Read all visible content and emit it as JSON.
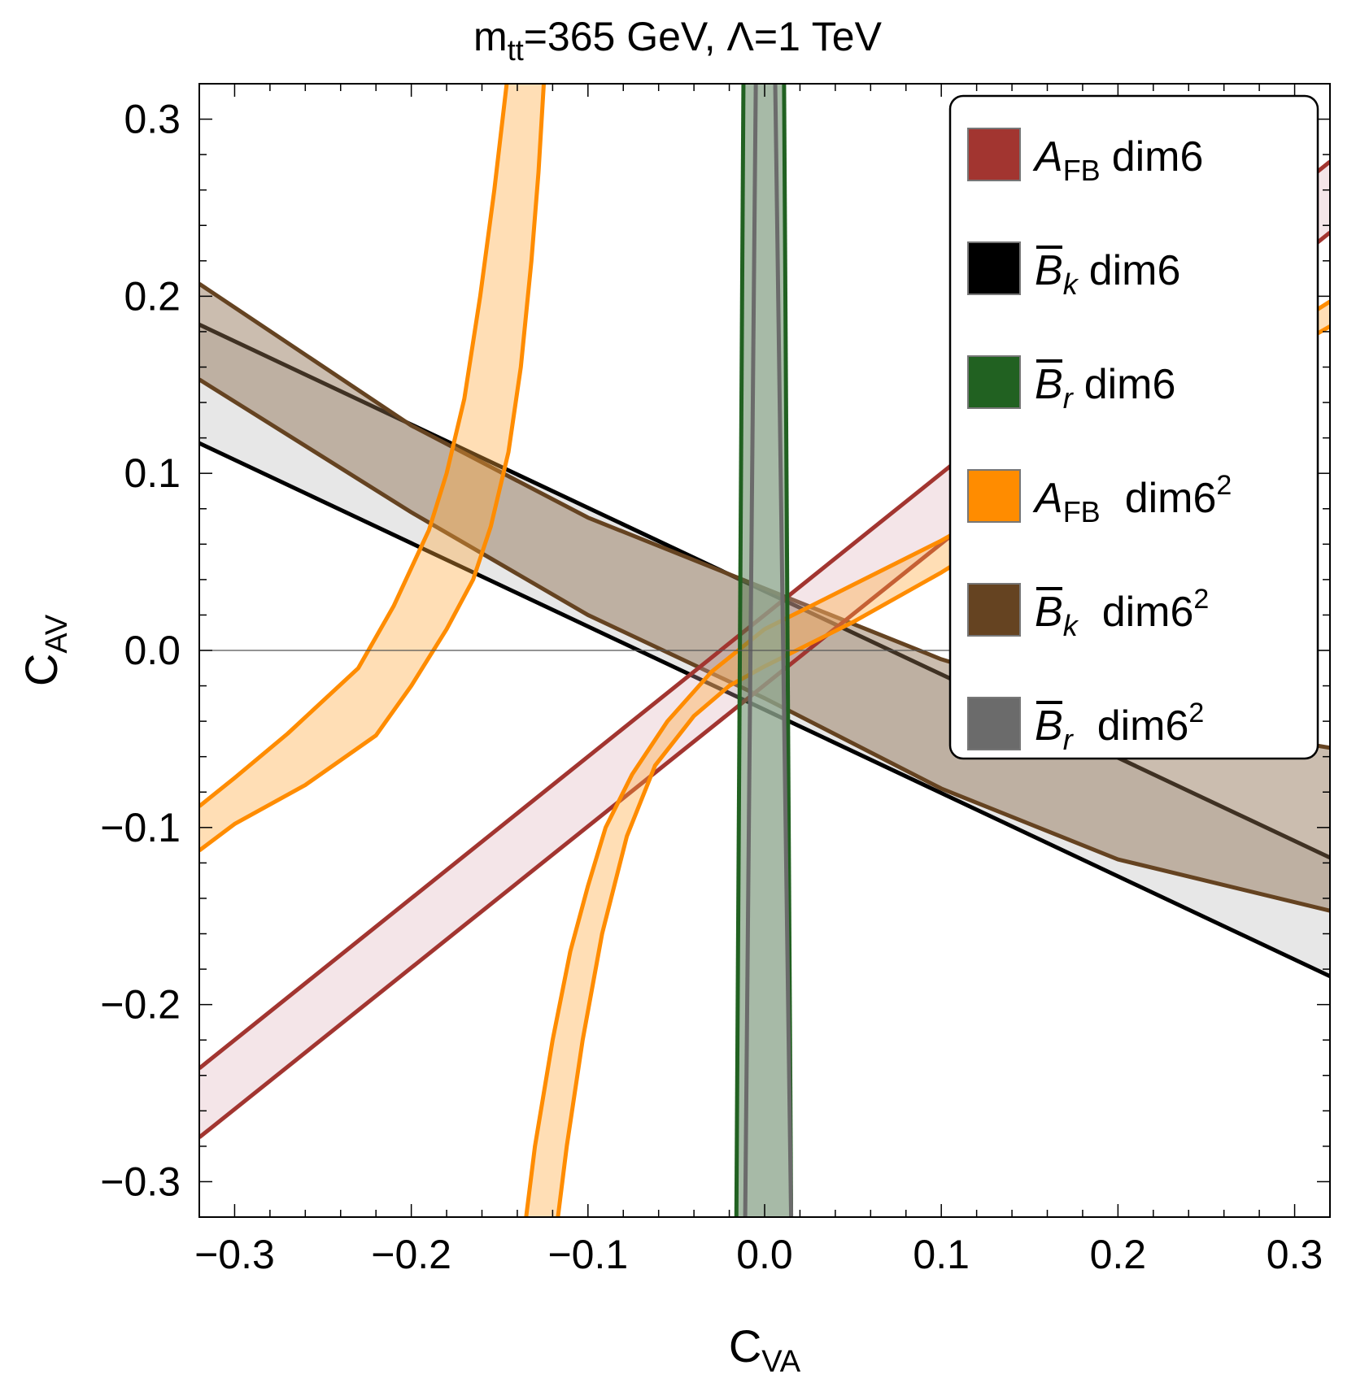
{
  "chart_data": {
    "type": "region",
    "title": {
      "main": "m",
      "sub": "tt",
      "rest": "=365 GeV, Λ=1 TeV"
    },
    "xlabel": {
      "main": "C",
      "sub": "VA"
    },
    "ylabel": {
      "main": "C",
      "sub": "AV"
    },
    "xlim": [
      -0.32,
      0.32
    ],
    "ylim": [
      -0.32,
      0.32
    ],
    "x_ticks": [
      {
        "value": -0.3,
        "label": "−0.3"
      },
      {
        "value": -0.2,
        "label": "−0.2"
      },
      {
        "value": -0.1,
        "label": "−0.1"
      },
      {
        "value": 0.0,
        "label": "0.0"
      },
      {
        "value": 0.1,
        "label": "0.1"
      },
      {
        "value": 0.2,
        "label": "0.2"
      },
      {
        "value": 0.3,
        "label": "0.3"
      }
    ],
    "y_ticks": [
      {
        "value": -0.3,
        "label": "−0.3"
      },
      {
        "value": -0.2,
        "label": "−0.2"
      },
      {
        "value": -0.1,
        "label": "−0.1"
      },
      {
        "value": 0.0,
        "label": "0.0"
      },
      {
        "value": 0.1,
        "label": "0.1"
      },
      {
        "value": 0.2,
        "label": "0.2"
      },
      {
        "value": 0.3,
        "label": "0.3"
      }
    ],
    "zero_line_y": 0.0,
    "series": [
      {
        "name": "Bbar_k_dim6",
        "kind": "band_y",
        "edge_color": "#000000",
        "fill_color": "#9e9e9e",
        "fill_opacity": 0.25,
        "lower": [
          [
            -0.32,
            0.117
          ],
          [
            0.32,
            -0.184
          ]
        ],
        "upper": [
          [
            -0.32,
            0.184
          ],
          [
            0.32,
            -0.117
          ]
        ]
      },
      {
        "name": "Bbar_k_dim6sq",
        "kind": "band_y",
        "edge_color": "#654321",
        "fill_color": "#8b6c4e",
        "fill_opacity": 0.45,
        "lower": [
          [
            -0.32,
            0.153
          ],
          [
            -0.2,
            0.078
          ],
          [
            -0.1,
            0.02
          ],
          [
            0.0,
            -0.027
          ],
          [
            0.1,
            -0.078
          ],
          [
            0.2,
            -0.118
          ],
          [
            0.32,
            -0.147
          ]
        ],
        "upper": [
          [
            -0.32,
            0.207
          ],
          [
            -0.2,
            0.127
          ],
          [
            -0.1,
            0.075
          ],
          [
            0.0,
            0.035
          ],
          [
            0.1,
            -0.005
          ],
          [
            0.2,
            -0.035
          ],
          [
            0.32,
            -0.055
          ]
        ]
      },
      {
        "name": "A_FB_dim6",
        "kind": "band_y",
        "edge_color": "#a23530",
        "fill_color": "#d9a9b3",
        "fill_opacity": 0.3,
        "lower": [
          [
            -0.32,
            -0.275
          ],
          [
            0.32,
            0.236
          ]
        ],
        "upper": [
          [
            -0.32,
            -0.236
          ],
          [
            0.32,
            0.276
          ]
        ]
      },
      {
        "name": "A_FB_dim6sq_left",
        "kind": "band_y",
        "edge_color": "#ff8c00",
        "fill_color": "#ffa93d",
        "fill_opacity": 0.38,
        "lower": [
          [
            -0.32,
            -0.113
          ],
          [
            -0.3,
            -0.098
          ],
          [
            -0.26,
            -0.076
          ],
          [
            -0.22,
            -0.048
          ],
          [
            -0.2,
            -0.02
          ],
          [
            -0.18,
            0.012
          ],
          [
            -0.165,
            0.04
          ],
          [
            -0.155,
            0.07
          ],
          [
            -0.145,
            0.112
          ],
          [
            -0.138,
            0.16
          ],
          [
            -0.132,
            0.22
          ],
          [
            -0.128,
            0.27
          ],
          [
            -0.125,
            0.32
          ]
        ],
        "upper": [
          [
            -0.32,
            -0.088
          ],
          [
            -0.3,
            -0.072
          ],
          [
            -0.27,
            -0.047
          ],
          [
            -0.23,
            -0.01
          ],
          [
            -0.21,
            0.025
          ],
          [
            -0.19,
            0.068
          ],
          [
            -0.18,
            0.1
          ],
          [
            -0.17,
            0.142
          ],
          [
            -0.161,
            0.2
          ],
          [
            -0.153,
            0.26
          ],
          [
            -0.146,
            0.32
          ]
        ]
      },
      {
        "name": "A_FB_dim6sq_right",
        "kind": "band_y",
        "edge_color": "#ff8c00",
        "fill_color": "#ffa93d",
        "fill_opacity": 0.38,
        "lower": [
          [
            -0.117,
            -0.32
          ],
          [
            -0.112,
            -0.28
          ],
          [
            -0.103,
            -0.22
          ],
          [
            -0.092,
            -0.16
          ],
          [
            -0.078,
            -0.105
          ],
          [
            -0.062,
            -0.065
          ],
          [
            -0.04,
            -0.037
          ],
          [
            -0.02,
            -0.02
          ],
          [
            0.0,
            -0.009
          ],
          [
            0.05,
            0.016
          ],
          [
            0.1,
            0.044
          ],
          [
            0.15,
            0.075
          ],
          [
            0.2,
            0.11
          ],
          [
            0.25,
            0.143
          ],
          [
            0.32,
            0.183
          ]
        ],
        "upper": [
          [
            -0.135,
            -0.32
          ],
          [
            -0.13,
            -0.28
          ],
          [
            -0.12,
            -0.22
          ],
          [
            -0.11,
            -0.17
          ],
          [
            -0.1,
            -0.133
          ],
          [
            -0.09,
            -0.1
          ],
          [
            -0.075,
            -0.07
          ],
          [
            -0.055,
            -0.04
          ],
          [
            -0.03,
            -0.012
          ],
          [
            0.0,
            0.012
          ],
          [
            0.05,
            0.037
          ],
          [
            0.1,
            0.062
          ],
          [
            0.15,
            0.09
          ],
          [
            0.2,
            0.122
          ],
          [
            0.25,
            0.153
          ],
          [
            0.32,
            0.197
          ]
        ]
      },
      {
        "name": "Bbar_r_dim6",
        "kind": "band_x",
        "edge_color": "#216121",
        "fill_color": "#4f7a4f",
        "fill_opacity": 0.5,
        "left": [
          [
            -0.32,
            -0.016
          ],
          [
            0.32,
            -0.012
          ]
        ],
        "right": [
          [
            -0.32,
            0.015
          ],
          [
            0.32,
            0.011
          ]
        ]
      },
      {
        "name": "Bbar_r_dim6sq",
        "kind": "band_x",
        "edge_color": "#6b6b6b",
        "fill_color": "#a8b8a8",
        "fill_opacity": 0.55,
        "left": [
          [
            -0.32,
            -0.011
          ],
          [
            0.32,
            -0.005
          ]
        ],
        "right": [
          [
            -0.32,
            0.015
          ],
          [
            0.32,
            0.006
          ]
        ]
      }
    ],
    "legend": {
      "position": "top-right",
      "items": [
        {
          "swatch": "#a23530",
          "sym": "A",
          "sub": "FB",
          "text": "dim6",
          "sup": ""
        },
        {
          "swatch": "#000000",
          "sym": "B",
          "sub": "k",
          "text": "dim6",
          "sup": ""
        },
        {
          "swatch": "#216121",
          "sym": "B",
          "sub": "r",
          "text": "dim6",
          "sup": ""
        },
        {
          "swatch": "#ff8c00",
          "sym": "A",
          "sub": "FB",
          "text": "dim6",
          "sup": "2"
        },
        {
          "swatch": "#654321",
          "sym": "B",
          "sub": "k",
          "text": "dim6",
          "sup": "2"
        },
        {
          "swatch": "#6b6b6b",
          "sym": "B",
          "sub": "r",
          "text": "dim6",
          "sup": "2"
        }
      ]
    }
  }
}
